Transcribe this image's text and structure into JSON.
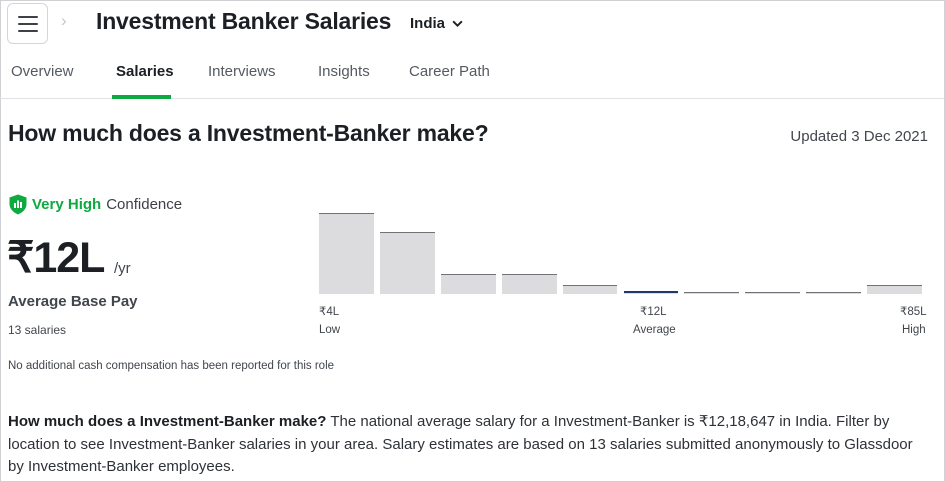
{
  "header": {
    "menu_icon": "hamburger-menu-icon",
    "breadcrumb_icon": "chevron-right-icon",
    "title": "Investment Banker Salaries",
    "location": "India",
    "location_icon": "chevron-down-icon"
  },
  "tabs": [
    {
      "label": "Overview",
      "active": false
    },
    {
      "label": "Salaries",
      "active": true
    },
    {
      "label": "Interviews",
      "active": false
    },
    {
      "label": "Insights",
      "active": false
    },
    {
      "label": "Career Path",
      "active": false
    }
  ],
  "colors": {
    "accent": "#0caa41",
    "average_bar": "#1f3a67",
    "bar_fill": "#dcdcde"
  },
  "section": {
    "title": "How much does a Investment-Banker make?",
    "updated": "Updated 3 Dec 2021"
  },
  "confidence": {
    "icon": "shield-chart-icon",
    "level": "Very High",
    "label": "Confidence"
  },
  "pay": {
    "amount": "₹12L",
    "unit": "/yr",
    "label": "Average Base Pay",
    "count": "13 salaries",
    "cash_note": "No additional cash compensation has been reported for this role"
  },
  "histogram": {
    "relative_heights": [
      0.91,
      0.7,
      0.22,
      0.22,
      0.1,
      0.03,
      0.02,
      0.02,
      0.02,
      0.1
    ],
    "average_bin": 5,
    "low_value": "₹4L",
    "low_label": "Low",
    "avg_value": "₹12L",
    "avg_label": "Average",
    "high_value": "₹85L",
    "high_label": "High"
  },
  "description": {
    "question": "How much does a Investment-Banker make?",
    "body": " The national average salary for a Investment-Banker is ₹12,18,647 in India. Filter by location to see Investment-Banker salaries in your area. Salary estimates are based on 13 salaries submitted anonymously to Glassdoor by Investment-Banker employees."
  }
}
